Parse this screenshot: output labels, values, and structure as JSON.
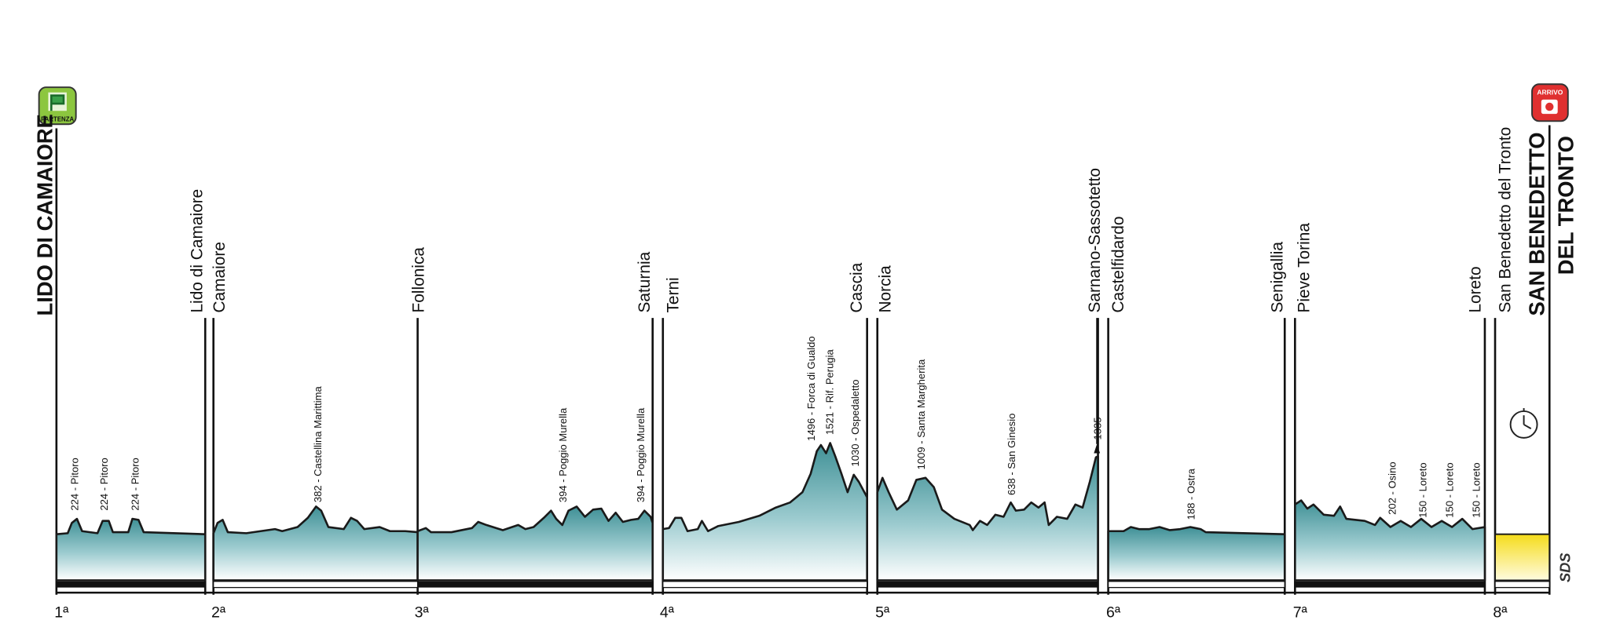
{
  "start": {
    "badge": "PARTENZA",
    "city": "LIDO DI CAMAIORE"
  },
  "finish": {
    "badge": "ARRIVO",
    "city_line1": "SAN BENEDETTO",
    "city_line2": "DEL TRONTO"
  },
  "places": [
    "Lido di Camaiore",
    "Camaiore",
    "Follonica",
    "Saturnia",
    "Terni",
    "Cascia",
    "Norcia",
    "Sarnano-Sassotetto",
    "Castelfidardo",
    "Senigallia",
    "Pieve Torina",
    "Loreto",
    "San Benedetto del Tronto"
  ],
  "climbs": [
    "224 - Pitoro",
    "224 - Pitoro",
    "224 - Pitoro",
    "382 - Castellina Marittima",
    "394 - Poggio Murella",
    "394 - Poggio Murella",
    "1496 - Forca di Gualdo",
    "1521 - Rif. Perugia",
    "1030 - Ospedaletto",
    "1009 - Santa Margherita",
    "638 - San Ginesio",
    "1335",
    "188 - Ostra",
    "202 - Osino",
    "150 - Loreto",
    "150 - Loreto",
    "150 - Loreto"
  ],
  "stage_numbers": [
    "1ª",
    "2ª",
    "3ª",
    "4ª",
    "5ª",
    "6ª",
    "7ª",
    "8ª"
  ],
  "logo": "SDS"
}
